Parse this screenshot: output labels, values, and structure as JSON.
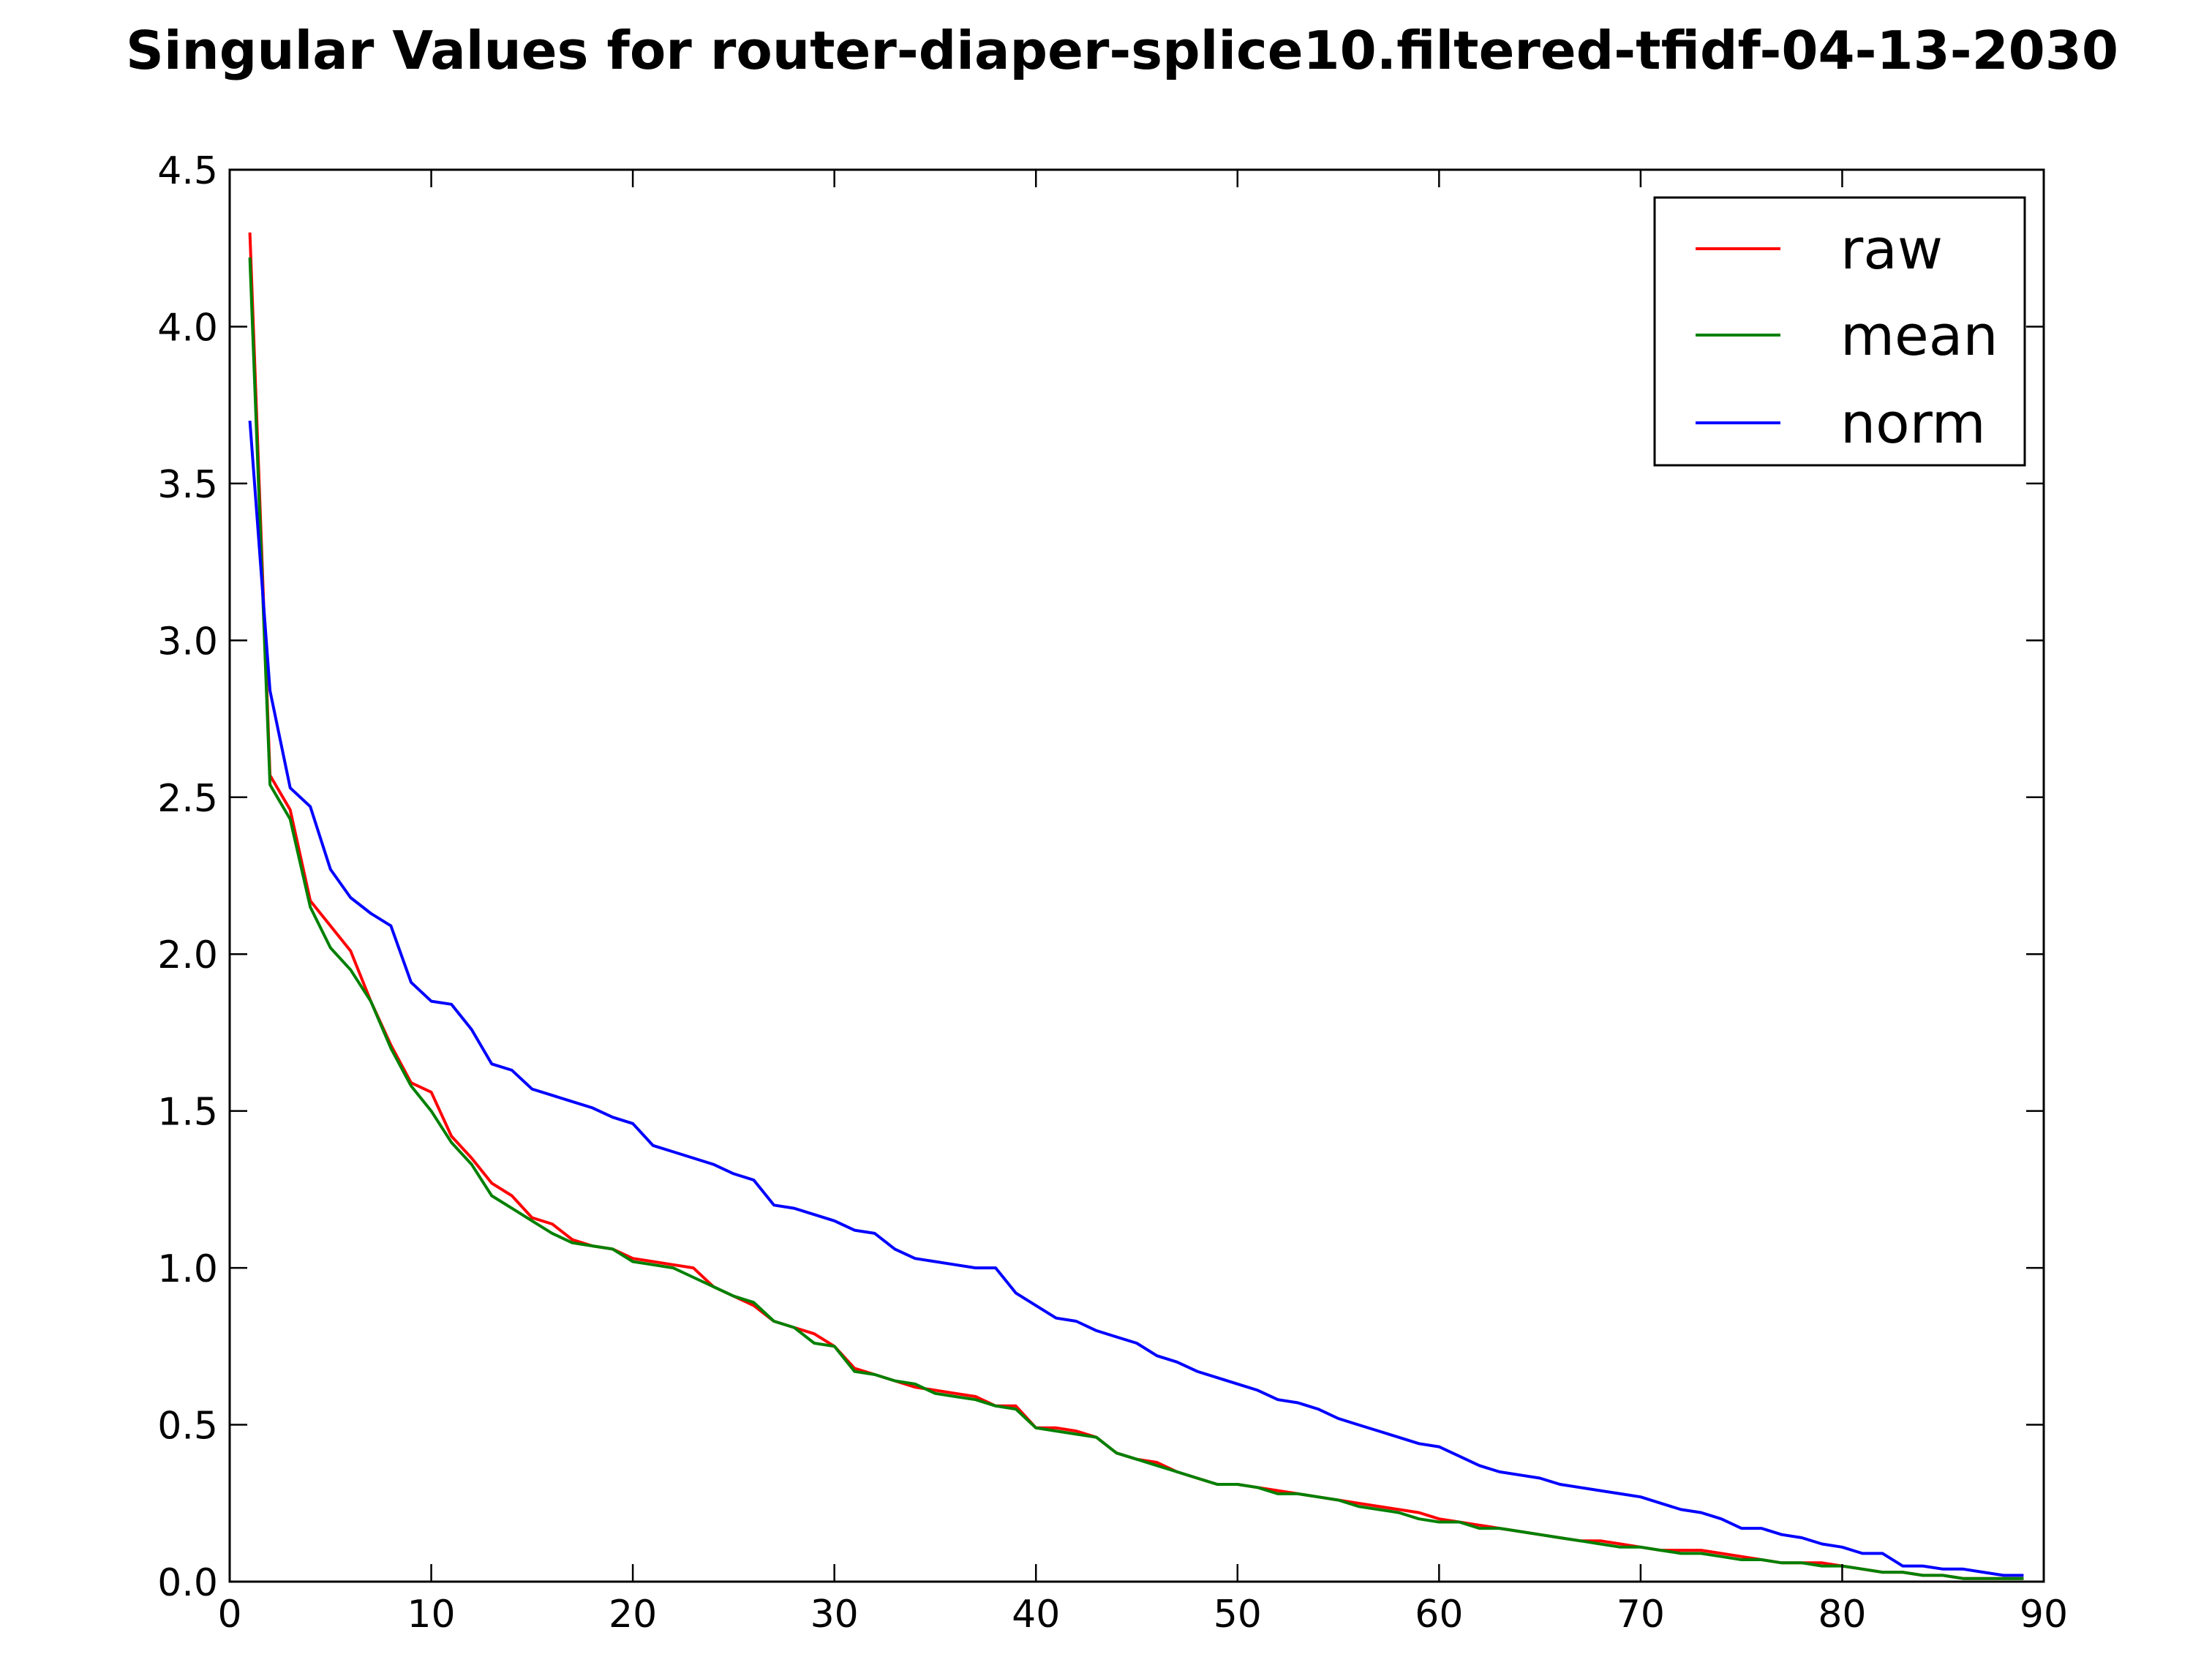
{
  "chart_data": {
    "type": "line",
    "title": "Singular Values for router-diaper-splice10.filtered-tfidf-04-13-2030",
    "xlabel": "",
    "ylabel": "",
    "xlim": [
      0,
      90
    ],
    "ylim": [
      0,
      4.5
    ],
    "xticks": [
      0,
      10,
      20,
      30,
      40,
      50,
      60,
      70,
      80,
      90
    ],
    "yticks": [
      0.0,
      0.5,
      1.0,
      1.5,
      2.0,
      2.5,
      3.0,
      3.5,
      4.0,
      4.5
    ],
    "xtick_labels": [
      "0",
      "10",
      "20",
      "30",
      "40",
      "50",
      "60",
      "70",
      "80",
      "90"
    ],
    "ytick_labels": [
      "0.0",
      "0.5",
      "1.0",
      "1.5",
      "2.0",
      "2.5",
      "3.0",
      "3.5",
      "4.0",
      "4.5"
    ],
    "grid": false,
    "legend_position": "top-right",
    "x": [
      1,
      2,
      3,
      4,
      5,
      6,
      7,
      8,
      9,
      10,
      11,
      12,
      13,
      14,
      15,
      16,
      17,
      18,
      19,
      20,
      21,
      22,
      23,
      24,
      25,
      26,
      27,
      28,
      29,
      30,
      31,
      32,
      33,
      34,
      35,
      36,
      37,
      38,
      39,
      40,
      41,
      42,
      43,
      44,
      45,
      46,
      47,
      48,
      49,
      50,
      51,
      52,
      53,
      54,
      55,
      56,
      57,
      58,
      59,
      60,
      61,
      62,
      63,
      64,
      65,
      66,
      67,
      68,
      69,
      70,
      71,
      72,
      73,
      74,
      75,
      76,
      77,
      78,
      79,
      80,
      81,
      82,
      83,
      84,
      85,
      86,
      87,
      88,
      89
    ],
    "series": [
      {
        "name": "raw",
        "color": "#ff0000",
        "values": [
          4.3,
          2.57,
          2.46,
          2.17,
          2.09,
          2.01,
          1.85,
          1.71,
          1.59,
          1.56,
          1.42,
          1.35,
          1.27,
          1.23,
          1.16,
          1.14,
          1.09,
          1.07,
          1.06,
          1.03,
          1.02,
          1.01,
          1.0,
          0.94,
          0.91,
          0.88,
          0.83,
          0.81,
          0.79,
          0.75,
          0.68,
          0.66,
          0.64,
          0.62,
          0.61,
          0.6,
          0.59,
          0.56,
          0.56,
          0.49,
          0.49,
          0.48,
          0.46,
          0.41,
          0.39,
          0.38,
          0.35,
          0.33,
          0.31,
          0.31,
          0.3,
          0.29,
          0.28,
          0.27,
          0.26,
          0.25,
          0.24,
          0.23,
          0.22,
          0.2,
          0.19,
          0.18,
          0.17,
          0.16,
          0.15,
          0.14,
          0.13,
          0.13,
          0.12,
          0.11,
          0.1,
          0.1,
          0.1,
          0.09,
          0.08,
          0.07,
          0.06,
          0.06,
          0.06,
          0.05,
          0.04,
          0.03,
          0.03,
          0.02,
          0.02,
          0.01,
          0.01,
          0.01,
          0.01
        ]
      },
      {
        "name": "mean",
        "color": "#008000",
        "values": [
          4.22,
          2.54,
          2.43,
          2.15,
          2.02,
          1.95,
          1.85,
          1.7,
          1.58,
          1.5,
          1.4,
          1.33,
          1.23,
          1.19,
          1.15,
          1.11,
          1.08,
          1.07,
          1.06,
          1.02,
          1.01,
          1.0,
          0.97,
          0.94,
          0.91,
          0.89,
          0.83,
          0.81,
          0.76,
          0.75,
          0.67,
          0.66,
          0.64,
          0.63,
          0.6,
          0.59,
          0.58,
          0.56,
          0.55,
          0.49,
          0.48,
          0.47,
          0.46,
          0.41,
          0.39,
          0.37,
          0.35,
          0.33,
          0.31,
          0.31,
          0.3,
          0.28,
          0.28,
          0.27,
          0.26,
          0.24,
          0.23,
          0.22,
          0.2,
          0.19,
          0.19,
          0.17,
          0.17,
          0.16,
          0.15,
          0.14,
          0.13,
          0.12,
          0.11,
          0.11,
          0.1,
          0.09,
          0.09,
          0.08,
          0.07,
          0.07,
          0.06,
          0.06,
          0.05,
          0.05,
          0.04,
          0.03,
          0.03,
          0.02,
          0.02,
          0.01,
          0.01,
          0.01,
          0.01
        ]
      },
      {
        "name": "norm",
        "color": "#0000ff",
        "values": [
          3.7,
          2.84,
          2.53,
          2.47,
          2.27,
          2.18,
          2.13,
          2.09,
          1.91,
          1.85,
          1.84,
          1.76,
          1.65,
          1.63,
          1.57,
          1.55,
          1.53,
          1.51,
          1.48,
          1.46,
          1.39,
          1.37,
          1.35,
          1.33,
          1.3,
          1.28,
          1.2,
          1.19,
          1.17,
          1.15,
          1.12,
          1.11,
          1.06,
          1.03,
          1.02,
          1.01,
          1.0,
          1.0,
          0.92,
          0.88,
          0.84,
          0.83,
          0.8,
          0.78,
          0.76,
          0.72,
          0.7,
          0.67,
          0.65,
          0.63,
          0.61,
          0.58,
          0.57,
          0.55,
          0.52,
          0.5,
          0.48,
          0.46,
          0.44,
          0.43,
          0.4,
          0.37,
          0.35,
          0.34,
          0.33,
          0.31,
          0.3,
          0.29,
          0.28,
          0.27,
          0.25,
          0.23,
          0.22,
          0.2,
          0.17,
          0.17,
          0.15,
          0.14,
          0.12,
          0.11,
          0.09,
          0.09,
          0.05,
          0.05,
          0.04,
          0.04,
          0.03,
          0.02,
          0.02
        ]
      }
    ]
  }
}
